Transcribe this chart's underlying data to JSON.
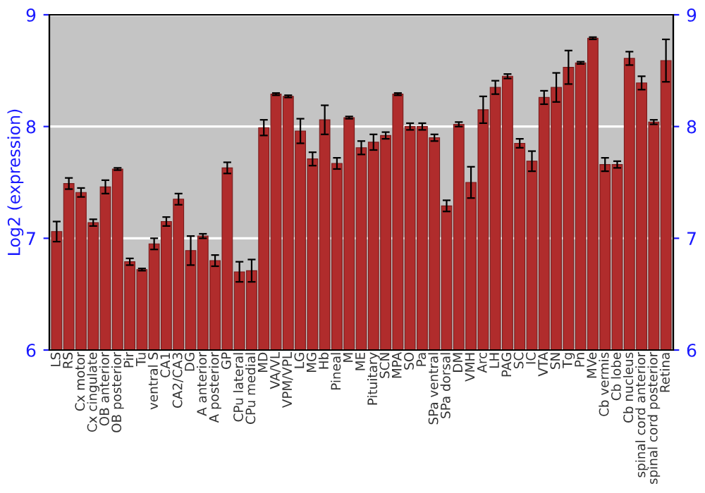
{
  "chart_data": {
    "type": "bar",
    "ylabel": "Log2 (expression)",
    "categories": [
      "LS",
      "RS",
      "Cx motor",
      "Cx cingulate",
      "OB anterior",
      "OB posterior",
      "Pir",
      "Tu",
      "ventral S",
      "CA1",
      "CA2/CA3",
      "DG",
      "A anterior",
      "A posterior",
      "GP",
      "CPu lateral",
      "CPu medial",
      "MD",
      "VA/VL",
      "VPM/VPL",
      "LG",
      "MG",
      "Hb",
      "Pineal",
      "M",
      "ME",
      "Pituitary",
      "SCN",
      "MPA",
      "SO",
      "Pa",
      "SPa ventral",
      "SPa dorsal",
      "DM",
      "VMH",
      "Arc",
      "LH",
      "PAG",
      "SC",
      "IC",
      "VTA",
      "SN",
      "Tg",
      "Pn",
      "MVe",
      "Cb vermis",
      "Cb lobe",
      "Cb nucleus",
      "spinal cord anterior",
      "spinal cord posterior",
      "Retina"
    ],
    "series": [
      {
        "color": "#b02c2c",
        "values": [
          7.06,
          7.49,
          7.41,
          7.14,
          7.46,
          7.62,
          6.79,
          6.72,
          6.95,
          7.15,
          7.35,
          6.89,
          7.02,
          6.8,
          7.63,
          6.7,
          6.71,
          7.99,
          8.29,
          8.27,
          7.96,
          7.71,
          8.06,
          7.67,
          8.08,
          7.81,
          7.86,
          7.92,
          8.29,
          8.0,
          8.0,
          7.9,
          7.29,
          8.02,
          7.5,
          8.15,
          8.35,
          8.45,
          7.85,
          7.69,
          8.26,
          8.35,
          8.53,
          8.57,
          8.79,
          7.66,
          7.66,
          8.61,
          8.39,
          8.04,
          8.59
        ],
        "errors": [
          0.09,
          0.05,
          0.04,
          0.03,
          0.06,
          0.01,
          0.03,
          0.01,
          0.05,
          0.04,
          0.05,
          0.13,
          0.02,
          0.05,
          0.05,
          0.09,
          0.1,
          0.07,
          0.01,
          0.01,
          0.11,
          0.06,
          0.13,
          0.05,
          0.01,
          0.06,
          0.07,
          0.03,
          0.01,
          0.03,
          0.03,
          0.03,
          0.05,
          0.02,
          0.14,
          0.12,
          0.06,
          0.02,
          0.04,
          0.09,
          0.06,
          0.13,
          0.15,
          0.01,
          0.01,
          0.06,
          0.03,
          0.06,
          0.06,
          0.02,
          0.19
        ]
      }
    ],
    "ylim": [
      6,
      9
    ],
    "yticks": [
      6,
      7,
      8,
      9
    ],
    "y2lim": [
      6,
      9
    ],
    "y2ticks": [
      6,
      7,
      8,
      9
    ],
    "grid": "y",
    "legend": false
  }
}
